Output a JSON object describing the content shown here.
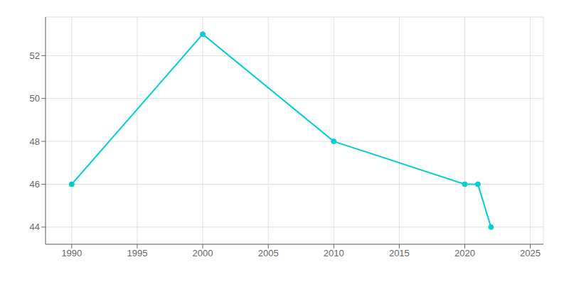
{
  "chart_data": {
    "type": "line",
    "x": [
      1990,
      2000,
      2010,
      2020,
      2021,
      2022
    ],
    "values": [
      46,
      53,
      48,
      46,
      46,
      44
    ],
    "color": "#00CED1",
    "marker": "circle",
    "xlim": [
      1988,
      2026
    ],
    "ylim": [
      43.2,
      53.8
    ],
    "xticks": [
      1990,
      1995,
      2000,
      2005,
      2010,
      2015,
      2020,
      2025
    ],
    "yticks": [
      44,
      46,
      48,
      50,
      52
    ],
    "grid": true
  }
}
